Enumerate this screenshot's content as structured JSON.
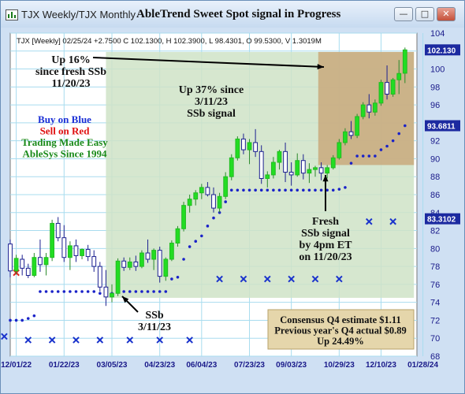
{
  "window": {
    "tab_title": "TJX Weekly/TJX Monthly",
    "title": "AbleTrend Sweet Spot signal in Progress",
    "buttons": [
      "—",
      "□",
      "✕"
    ]
  },
  "info_line": "TJX [Weekly] 02/25/24 +2.7500 C 102.1300, H 102.3900, L 98.4301, O 99.5300, V 1.3019M",
  "legend_text": {
    "line1": "Buy on Blue",
    "line2": "Sell on Red",
    "line3": "Trading Made Easy",
    "line4": "AbleSys Since 1994",
    "colors": {
      "line1": "#1a2fd6",
      "line2": "#e01010",
      "line3": "#1a8a1a",
      "line4": "#1a8a1a"
    }
  },
  "annotations": {
    "up16": [
      "Up 16%",
      "since fresh SSb",
      "11/20/23"
    ],
    "up37": [
      "Up 37% since",
      "3/11/23",
      "SSb signal"
    ],
    "fresh": [
      "Fresh",
      "SSb signal",
      "by 4pm ET",
      "on 11/20/23"
    ],
    "ssb": [
      "SSb",
      "3/11/23"
    ],
    "consensus": [
      "Consensus Q4 estimate $1.11",
      "Previous year's Q4 actual $0.89",
      "Up 24.49%"
    ]
  },
  "colors": {
    "plot_bg": "#ffffff",
    "grid": "#a8dcef",
    "up_candle": "#22dd22",
    "down_candle": "#1c2090",
    "signal_dot": "#1a22c8",
    "signal_x": "#1a33cc",
    "sell_x": "#e02020",
    "zone_big": "#cfe3c7",
    "zone_recent": "#c9a97c",
    "consensus_bg": "#e5d6ab",
    "price_tag_bg": "#1c2aa0"
  },
  "chart_data": {
    "type": "candlestick",
    "title": "AbleTrend Sweet Spot signal in Progress",
    "ylim": [
      68,
      104
    ],
    "yticks": [
      68,
      70,
      72,
      74,
      76,
      78,
      80,
      82,
      84,
      86,
      88,
      90,
      92,
      94,
      96,
      98,
      100,
      102,
      104
    ],
    "xlim": [
      0,
      68
    ],
    "xticks": [
      {
        "x": 1,
        "label": "12/01/22"
      },
      {
        "x": 9,
        "label": "01/22/23"
      },
      {
        "x": 17,
        "label": "03/05/23"
      },
      {
        "x": 25,
        "label": "04/23/23"
      },
      {
        "x": 32,
        "label": "06/04/23"
      },
      {
        "x": 40,
        "label": "07/23/23"
      },
      {
        "x": 47,
        "label": "09/03/23"
      },
      {
        "x": 55,
        "label": "10/29/23"
      },
      {
        "x": 62,
        "label": "12/10/23"
      },
      {
        "x": 69,
        "label": "01/28/24"
      }
    ],
    "price_tags": [
      {
        "value": 102.13,
        "label": "102.130"
      },
      {
        "value": 93.6811,
        "label": "93.6811"
      },
      {
        "value": 83.3102,
        "label": "83.3102"
      }
    ],
    "candles": [
      [
        0,
        80.5,
        81.0,
        76.8,
        77.5
      ],
      [
        1,
        77.5,
        79.3,
        77.1,
        78.9
      ],
      [
        2,
        78.8,
        79.3,
        77.0,
        77.8
      ],
      [
        3,
        77.8,
        78.3,
        76.7,
        77.0
      ],
      [
        4,
        77.0,
        79.5,
        76.8,
        79.0
      ],
      [
        5,
        79.0,
        81.0,
        77.4,
        78.2
      ],
      [
        6,
        78.2,
        79.5,
        77.0,
        79.0
      ],
      [
        7,
        79.0,
        83.2,
        78.6,
        82.8
      ],
      [
        8,
        82.8,
        83.5,
        80.8,
        81.2
      ],
      [
        9,
        81.2,
        82.6,
        78.5,
        79.0
      ],
      [
        10,
        79.0,
        80.8,
        77.6,
        80.3
      ],
      [
        11,
        80.3,
        81.0,
        78.5,
        79.2
      ],
      [
        12,
        79.2,
        80.0,
        78.8,
        79.9
      ],
      [
        13,
        79.9,
        80.4,
        78.6,
        79.1
      ],
      [
        14,
        79.1,
        79.8,
        77.4,
        78.0
      ],
      [
        15,
        78.0,
        78.5,
        75.2,
        75.7
      ],
      [
        16,
        75.7,
        77.6,
        73.6,
        74.6
      ],
      [
        17,
        74.6,
        76.0,
        74.0,
        75.0
      ],
      [
        18,
        75.0,
        78.9,
        74.7,
        78.6
      ],
      [
        19,
        78.6,
        79.0,
        77.5,
        77.9
      ],
      [
        20,
        77.9,
        79.0,
        77.6,
        78.5
      ],
      [
        21,
        78.5,
        79.2,
        77.5,
        78.0
      ],
      [
        22,
        78.0,
        79.8,
        77.8,
        79.5
      ],
      [
        23,
        79.5,
        81.0,
        78.4,
        78.8
      ],
      [
        24,
        78.8,
        80.0,
        77.6,
        79.8
      ],
      [
        25,
        79.8,
        80.2,
        76.2,
        76.9
      ],
      [
        26,
        76.9,
        79.0,
        76.4,
        78.8
      ],
      [
        27,
        78.8,
        80.9,
        78.6,
        80.6
      ],
      [
        28,
        80.6,
        82.5,
        80.2,
        82.2
      ],
      [
        29,
        82.2,
        85.2,
        81.9,
        84.8
      ],
      [
        30,
        84.8,
        86.0,
        84.0,
        85.5
      ],
      [
        31,
        85.5,
        86.5,
        84.8,
        86.2
      ],
      [
        32,
        86.2,
        87.2,
        85.5,
        86.8
      ],
      [
        33,
        86.8,
        87.4,
        85.8,
        86.0
      ],
      [
        34,
        86.0,
        86.8,
        84.0,
        84.5
      ],
      [
        35,
        84.5,
        86.2,
        84.0,
        85.8
      ],
      [
        36,
        85.8,
        88.5,
        85.5,
        88.0
      ],
      [
        37,
        88.0,
        90.5,
        87.6,
        90.1
      ],
      [
        38,
        90.1,
        92.5,
        89.8,
        92.2
      ],
      [
        39,
        92.2,
        92.8,
        90.5,
        91.0
      ],
      [
        40,
        91.0,
        92.2,
        89.4,
        91.8
      ],
      [
        41,
        91.8,
        93.3,
        90.2,
        90.8
      ],
      [
        42,
        90.8,
        91.5,
        87.2,
        87.8
      ],
      [
        43,
        87.8,
        88.6,
        86.8,
        88.2
      ],
      [
        44,
        88.2,
        90.2,
        87.8,
        89.6
      ],
      [
        45,
        89.6,
        91.0,
        88.8,
        90.8
      ],
      [
        46,
        90.8,
        91.8,
        87.4,
        88.5
      ],
      [
        47,
        88.5,
        89.6,
        87.0,
        88.2
      ],
      [
        48,
        88.2,
        90.6,
        88.0,
        89.8
      ],
      [
        49,
        89.8,
        90.5,
        87.7,
        88.4
      ],
      [
        50,
        88.4,
        89.5,
        87.3,
        88.8
      ],
      [
        51,
        88.8,
        89.2,
        88.0,
        89.0
      ],
      [
        52,
        89.0,
        89.6,
        87.6,
        88.4
      ],
      [
        53,
        88.4,
        89.3,
        87.8,
        89.0
      ],
      [
        54,
        89.0,
        90.4,
        88.8,
        90.1
      ],
      [
        55,
        90.1,
        92.2,
        89.9,
        91.8
      ],
      [
        56,
        91.8,
        93.4,
        91.5,
        93.0
      ],
      [
        57,
        93.0,
        94.2,
        92.2,
        92.6
      ],
      [
        58,
        92.6,
        95.0,
        92.3,
        94.7
      ],
      [
        59,
        94.7,
        96.3,
        94.4,
        96.0
      ],
      [
        60,
        96.0,
        97.2,
        94.5,
        95.2
      ],
      [
        61,
        95.2,
        96.6,
        94.8,
        96.2
      ],
      [
        62,
        96.2,
        98.8,
        95.9,
        98.5
      ],
      [
        63,
        98.5,
        100.4,
        96.6,
        97.2
      ],
      [
        64,
        97.2,
        99.0,
        96.9,
        98.8
      ],
      [
        65,
        98.8,
        101.0,
        97.2,
        99.5
      ],
      [
        66,
        99.53,
        102.39,
        98.43,
        102.13
      ]
    ],
    "signal_dots": [
      [
        0,
        72.0
      ],
      [
        1,
        72.0
      ],
      [
        2,
        72.0
      ],
      [
        3,
        72.2
      ],
      [
        4,
        72.5
      ],
      [
        5,
        75.2
      ],
      [
        6,
        75.2
      ],
      [
        7,
        75.2
      ],
      [
        8,
        75.2
      ],
      [
        9,
        75.2
      ],
      [
        10,
        75.2
      ],
      [
        11,
        75.2
      ],
      [
        12,
        75.2
      ],
      [
        13,
        75.2
      ],
      [
        14,
        75.2
      ],
      [
        15,
        75.0
      ],
      [
        16,
        75.0
      ],
      [
        17,
        75.0
      ],
      [
        18,
        75.2
      ],
      [
        19,
        75.2
      ],
      [
        20,
        75.2
      ],
      [
        21,
        75.2
      ],
      [
        22,
        75.2
      ],
      [
        23,
        75.2
      ],
      [
        24,
        75.2
      ],
      [
        25,
        75.2
      ],
      [
        26,
        75.2
      ],
      [
        27,
        76.6
      ],
      [
        28,
        76.8
      ],
      [
        29,
        78.8
      ],
      [
        30,
        80.2
      ],
      [
        31,
        80.8
      ],
      [
        32,
        81.4
      ],
      [
        33,
        82.5
      ],
      [
        34,
        83.4
      ],
      [
        35,
        84.0
      ],
      [
        36,
        85.2
      ],
      [
        37,
        86.5
      ],
      [
        38,
        86.5
      ],
      [
        39,
        86.5
      ],
      [
        40,
        86.5
      ],
      [
        41,
        86.5
      ],
      [
        42,
        86.5
      ],
      [
        43,
        86.5
      ],
      [
        44,
        86.5
      ],
      [
        45,
        86.5
      ],
      [
        46,
        86.5
      ],
      [
        47,
        86.5
      ],
      [
        48,
        86.5
      ],
      [
        49,
        86.5
      ],
      [
        50,
        86.5
      ],
      [
        51,
        86.5
      ],
      [
        52,
        86.5
      ],
      [
        53,
        86.5
      ],
      [
        54,
        86.5
      ],
      [
        55,
        86.6
      ],
      [
        56,
        86.8
      ],
      [
        57,
        89.5
      ],
      [
        58,
        90.3
      ],
      [
        59,
        90.3
      ],
      [
        60,
        90.3
      ],
      [
        61,
        90.3
      ],
      [
        62,
        91.0
      ],
      [
        63,
        91.4
      ],
      [
        64,
        92.0
      ],
      [
        65,
        92.8
      ],
      [
        66,
        93.68
      ]
    ],
    "signal_x": [
      [
        -1,
        70.2
      ],
      [
        3,
        69.8
      ],
      [
        7,
        69.8
      ],
      [
        11,
        69.8
      ],
      [
        15,
        69.8
      ],
      [
        20,
        69.8
      ],
      [
        25,
        69.8
      ],
      [
        30,
        69.8
      ],
      [
        35,
        76.6
      ],
      [
        39,
        76.6
      ],
      [
        43,
        76.6
      ],
      [
        47,
        76.6
      ],
      [
        51,
        76.6
      ],
      [
        55,
        76.6
      ],
      [
        60,
        83.0
      ],
      [
        64,
        83.0
      ]
    ],
    "sell_x": [
      [
        1,
        77.3
      ]
    ],
    "zones": [
      {
        "x0": 16,
        "x1": 67.5,
        "y0": 74.5,
        "y1": 101.9
      },
      {
        "x0": 51.5,
        "x1": 67.5,
        "y0": 89.3,
        "y1": 101.9
      }
    ]
  }
}
